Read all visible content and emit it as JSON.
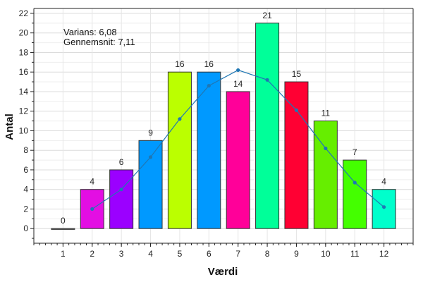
{
  "chart_data": {
    "type": "bar",
    "xlabel": "Værdi",
    "ylabel": "Antal",
    "categories": [
      "1",
      "2",
      "3",
      "4",
      "5",
      "6",
      "7",
      "8",
      "9",
      "10",
      "11",
      "12"
    ],
    "values": [
      0,
      4,
      6,
      9,
      16,
      16,
      14,
      21,
      15,
      11,
      7,
      4
    ],
    "value_labels": [
      "0",
      "4",
      "6",
      "9",
      "16",
      "16",
      "14",
      "21",
      "15",
      "11",
      "7",
      "4"
    ],
    "bar_colors": [
      "#808080",
      "#e30ee3",
      "#9b00ff",
      "#0099ff",
      "#bbff00",
      "#0099ff",
      "#ff0099",
      "#00ff99",
      "#ff0033",
      "#66ee00",
      "#44ff00",
      "#00ffcc"
    ],
    "bar_border_color": "#333333",
    "curve": {
      "x": [
        2,
        3,
        4,
        5,
        6,
        7,
        8,
        9,
        10,
        11,
        12
      ],
      "y": [
        2.0,
        4.0,
        7.3,
        11.2,
        14.6,
        16.2,
        15.2,
        12.1,
        8.2,
        4.7,
        2.2
      ],
      "color": "#1f77b4"
    },
    "ylim": [
      -1.5,
      22.5
    ],
    "xlim": [
      0,
      13
    ],
    "y_ticks": [
      "0",
      "2",
      "4",
      "6",
      "8",
      "10",
      "12",
      "14",
      "16",
      "18",
      "20",
      "22"
    ],
    "grid": true,
    "annotations": [
      "Varians: 6,08",
      "Gennemsnit: 7,11"
    ]
  }
}
